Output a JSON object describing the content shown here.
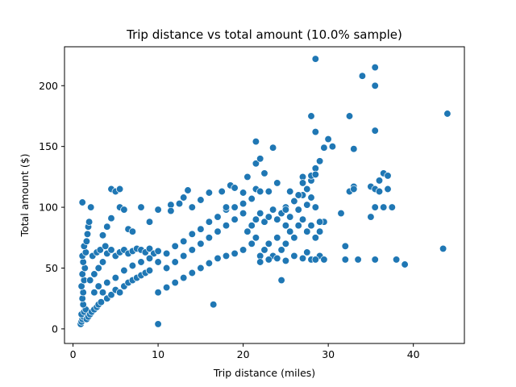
{
  "chart_data": {
    "type": "scatter",
    "title": "Trip distance vs total amount (10.0% sample)",
    "xlabel": "Trip distance (miles)",
    "ylabel": "Total amount ($)",
    "xlim": [
      -1,
      46
    ],
    "ylim": [
      -12,
      232
    ],
    "xticks": [
      0,
      10,
      20,
      30,
      40
    ],
    "yticks": [
      0,
      50,
      100,
      150,
      200
    ],
    "grid": false,
    "marker_color": "#1f77b4",
    "marker_edge_color": "#ffffff",
    "series": [
      {
        "points": [
          [
            0.9,
            4
          ],
          [
            1.0,
            6
          ],
          [
            1.1,
            8
          ],
          [
            1.2,
            10
          ],
          [
            1.0,
            12
          ],
          [
            1.3,
            14
          ],
          [
            1.5,
            16
          ],
          [
            1.2,
            20
          ],
          [
            1.6,
            8
          ],
          [
            1.8,
            10
          ],
          [
            2.0,
            12
          ],
          [
            2.2,
            14
          ],
          [
            2.5,
            16
          ],
          [
            2.8,
            18
          ],
          [
            3.0,
            20
          ],
          [
            3.3,
            22
          ],
          [
            1.1,
            25
          ],
          [
            1.2,
            30
          ],
          [
            1.0,
            35
          ],
          [
            1.3,
            40
          ],
          [
            1.1,
            45
          ],
          [
            1.4,
            50
          ],
          [
            1.2,
            55
          ],
          [
            1.1,
            60
          ],
          [
            1.5,
            63
          ],
          [
            1.3,
            68
          ],
          [
            1.6,
            72
          ],
          [
            1.7,
            78
          ],
          [
            1.8,
            84
          ],
          [
            1.9,
            88
          ],
          [
            1.1,
            104
          ],
          [
            2.1,
            100
          ],
          [
            2.0,
            40
          ],
          [
            2.5,
            45
          ],
          [
            3.0,
            50
          ],
          [
            3.5,
            55
          ],
          [
            2.3,
            60
          ],
          [
            2.8,
            63
          ],
          [
            3.2,
            65
          ],
          [
            3.8,
            68
          ],
          [
            4.0,
            62
          ],
          [
            4.5,
            65
          ],
          [
            5.0,
            60
          ],
          [
            5.5,
            63
          ],
          [
            6.0,
            65
          ],
          [
            6.5,
            62
          ],
          [
            7.0,
            64
          ],
          [
            7.5,
            66
          ],
          [
            8.0,
            65
          ],
          [
            8.5,
            63
          ],
          [
            9.0,
            66
          ],
          [
            9.5,
            62
          ],
          [
            10.0,
            64
          ],
          [
            2.5,
            30
          ],
          [
            3.0,
            35
          ],
          [
            3.5,
            30
          ],
          [
            4.0,
            25
          ],
          [
            4.5,
            28
          ],
          [
            5.0,
            32
          ],
          [
            5.5,
            30
          ],
          [
            6.0,
            35
          ],
          [
            6.5,
            38
          ],
          [
            7.0,
            40
          ],
          [
            7.5,
            42
          ],
          [
            8.0,
            44
          ],
          [
            8.5,
            46
          ],
          [
            9.0,
            48
          ],
          [
            4.0,
            38
          ],
          [
            5.0,
            42
          ],
          [
            6.0,
            48
          ],
          [
            7.0,
            52
          ],
          [
            8.0,
            55
          ],
          [
            9.0,
            58
          ],
          [
            10.0,
            55
          ],
          [
            10.0,
            30
          ],
          [
            11.0,
            34
          ],
          [
            12.0,
            38
          ],
          [
            13.0,
            42
          ],
          [
            14.0,
            46
          ],
          [
            15.0,
            50
          ],
          [
            16.0,
            54
          ],
          [
            17.0,
            58
          ],
          [
            18.0,
            60
          ],
          [
            19.0,
            62
          ],
          [
            20.0,
            65
          ],
          [
            11.0,
            50
          ],
          [
            12.0,
            55
          ],
          [
            13.0,
            60
          ],
          [
            14.0,
            65
          ],
          [
            15.0,
            70
          ],
          [
            16.0,
            75
          ],
          [
            17.0,
            80
          ],
          [
            18.0,
            85
          ],
          [
            19.0,
            90
          ],
          [
            20.0,
            95
          ],
          [
            11.0,
            62
          ],
          [
            12.0,
            68
          ],
          [
            13.0,
            72
          ],
          [
            14.0,
            78
          ],
          [
            15.0,
            82
          ],
          [
            16.0,
            88
          ],
          [
            17.0,
            92
          ],
          [
            18.0,
            98
          ],
          [
            19.0,
            100
          ],
          [
            20.0,
            103
          ],
          [
            21.0,
            70
          ],
          [
            21.5,
            75
          ],
          [
            22.0,
            60
          ],
          [
            22.5,
            65
          ],
          [
            23.0,
            70
          ],
          [
            23.5,
            60
          ],
          [
            24.0,
            75
          ],
          [
            24.5,
            65
          ],
          [
            25.0,
            70
          ],
          [
            25.5,
            80
          ],
          [
            26.0,
            75
          ],
          [
            26.5,
            85
          ],
          [
            27.0,
            90
          ],
          [
            27.5,
            80
          ],
          [
            28.0,
            85
          ],
          [
            28.5,
            75
          ],
          [
            29.0,
            80
          ],
          [
            29.5,
            88
          ],
          [
            20.5,
            80
          ],
          [
            21.0,
            85
          ],
          [
            21.5,
            90
          ],
          [
            22.0,
            95
          ],
          [
            22.5,
            88
          ],
          [
            23.0,
            92
          ],
          [
            23.5,
            98
          ],
          [
            24.0,
            90
          ],
          [
            24.5,
            95
          ],
          [
            25.0,
            100
          ],
          [
            25.5,
            92
          ],
          [
            26.0,
            105
          ],
          [
            26.5,
            98
          ],
          [
            27.0,
            110
          ],
          [
            27.5,
            102
          ],
          [
            28.0,
            108
          ],
          [
            28.5,
            100
          ],
          [
            22.0,
            55
          ],
          [
            23.0,
            57
          ],
          [
            24.0,
            58
          ],
          [
            25.0,
            56
          ],
          [
            26.0,
            60
          ],
          [
            27.0,
            58
          ],
          [
            28.0,
            57
          ],
          [
            29.0,
            60
          ],
          [
            27.5,
            63
          ],
          [
            28.5,
            57
          ],
          [
            29.5,
            57
          ],
          [
            4.5,
            115
          ],
          [
            5.0,
            113
          ],
          [
            5.5,
            115
          ],
          [
            5.5,
            100
          ],
          [
            6.0,
            98
          ],
          [
            6.5,
            82
          ],
          [
            7.0,
            80
          ],
          [
            4.5,
            91
          ],
          [
            4.0,
            84
          ],
          [
            3.5,
            77
          ],
          [
            8.0,
            100
          ],
          [
            9.0,
            88
          ],
          [
            10.0,
            98
          ],
          [
            10.0,
            4
          ],
          [
            11.5,
            102
          ],
          [
            11.5,
            97
          ],
          [
            12.5,
            103
          ],
          [
            13.0,
            108
          ],
          [
            13.5,
            114
          ],
          [
            14.0,
            100
          ],
          [
            15.0,
            106
          ],
          [
            16.0,
            112
          ],
          [
            16.5,
            20
          ],
          [
            17.5,
            113
          ],
          [
            18.0,
            100
          ],
          [
            18.5,
            118
          ],
          [
            19.0,
            116
          ],
          [
            20.0,
            112
          ],
          [
            20.5,
            125
          ],
          [
            21.0,
            107
          ],
          [
            21.5,
            115
          ],
          [
            22.0,
            113
          ],
          [
            23.0,
            113
          ],
          [
            24.0,
            120
          ],
          [
            24.5,
            40
          ],
          [
            25.0,
            98
          ],
          [
            21.5,
            136
          ],
          [
            21.5,
            154
          ],
          [
            22.0,
            140
          ],
          [
            22.5,
            128
          ],
          [
            23.5,
            149
          ],
          [
            27.0,
            125
          ],
          [
            27.5,
            115
          ],
          [
            28.0,
            122
          ],
          [
            28.0,
            126
          ],
          [
            28.5,
            132
          ],
          [
            28.5,
            162
          ],
          [
            28.0,
            175
          ],
          [
            29.0,
            138
          ],
          [
            29.0,
            88
          ],
          [
            29.5,
            149
          ],
          [
            30.0,
            156
          ],
          [
            30.5,
            150
          ],
          [
            28.5,
            222
          ],
          [
            31.5,
            95
          ],
          [
            32.0,
            68
          ],
          [
            32.0,
            57
          ],
          [
            32.5,
            175
          ],
          [
            32.5,
            113
          ],
          [
            33.0,
            117
          ],
          [
            33.0,
            115
          ],
          [
            33.0,
            148
          ],
          [
            33.5,
            57
          ],
          [
            34.0,
            208
          ],
          [
            35.0,
            117
          ],
          [
            35.5,
            115
          ],
          [
            35.5,
            163
          ],
          [
            35.5,
            215
          ],
          [
            35.5,
            200
          ],
          [
            35.0,
            92
          ],
          [
            35.5,
            100
          ],
          [
            36.0,
            113
          ],
          [
            36.0,
            122
          ],
          [
            36.5,
            128
          ],
          [
            37.0,
            126
          ],
          [
            37.0,
            115
          ],
          [
            37.5,
            100
          ],
          [
            36.5,
            100
          ],
          [
            35.5,
            57
          ],
          [
            38.0,
            57
          ],
          [
            39.0,
            53
          ],
          [
            43.5,
            66
          ],
          [
            44.0,
            177
          ],
          [
            28.5,
            127
          ],
          [
            25.5,
            113
          ],
          [
            25.0,
            85
          ],
          [
            26.5,
            110
          ],
          [
            27.0,
            120
          ]
        ]
      }
    ]
  }
}
